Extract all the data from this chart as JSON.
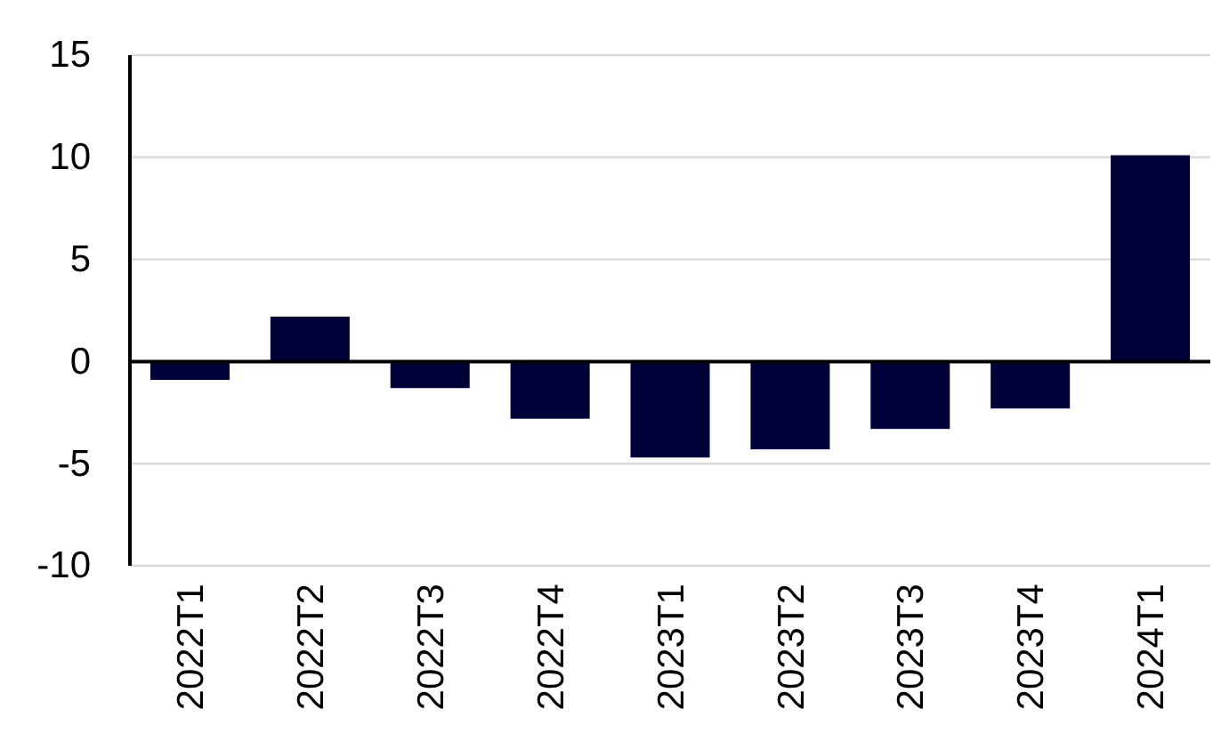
{
  "chart_data": {
    "type": "bar",
    "categories": [
      "2022T1",
      "2022T2",
      "2022T3",
      "2022T4",
      "2023T1",
      "2023T2",
      "2023T3",
      "2023T4",
      "2024T1"
    ],
    "values": [
      -0.9,
      2.2,
      -1.3,
      -2.8,
      -4.7,
      -4.3,
      -3.3,
      -2.3,
      10.1
    ],
    "color": "#000038",
    "ylim": [
      -10,
      15
    ],
    "yticks": [
      -10,
      -5,
      0,
      5,
      10,
      15
    ],
    "grid": "y"
  }
}
